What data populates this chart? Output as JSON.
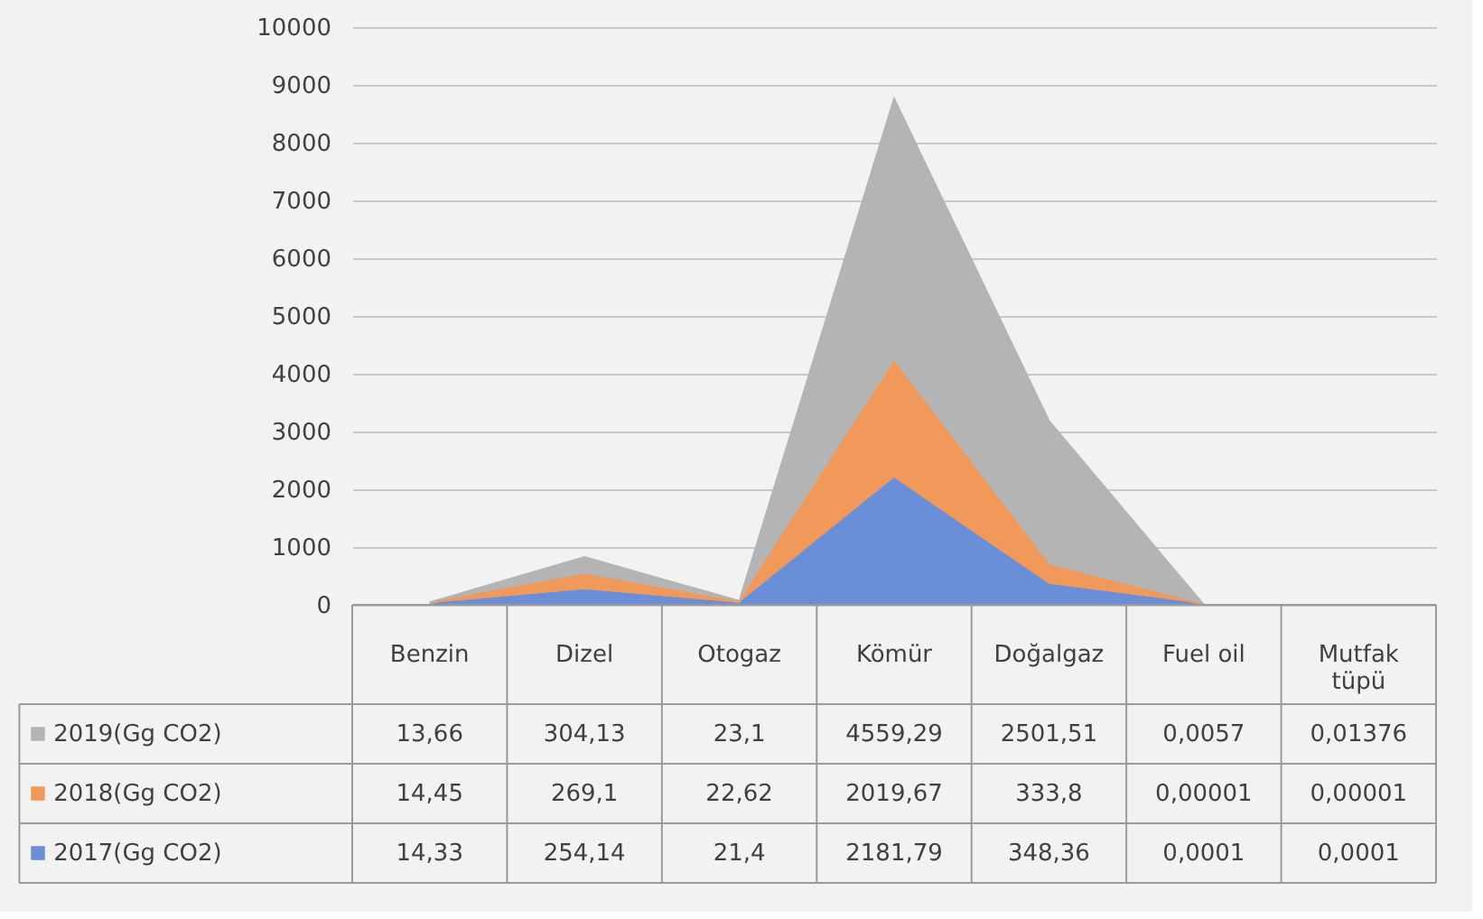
{
  "chart_data": {
    "type": "area",
    "stacked": true,
    "categories": [
      "Benzin",
      "Dizel",
      "Otogaz",
      "Kömür",
      "Doğalgaz",
      "Fuel oil",
      "Mutfak tüpü"
    ],
    "series": [
      {
        "name": "2017(Gg CO2)",
        "color": "#6a8fd8",
        "values": [
          14.33,
          254.14,
          21.4,
          2181.79,
          348.36,
          0.0001,
          0.0001
        ],
        "value_labels": [
          "14,33",
          "254,14",
          "21,4",
          "2181,79",
          "348,36",
          "0,0001",
          "0,0001"
        ]
      },
      {
        "name": "2018(Gg CO2)",
        "color": "#f0995a",
        "values": [
          14.45,
          269.1,
          22.62,
          2019.67,
          333.8,
          1e-05,
          1e-05
        ],
        "value_labels": [
          "14,45",
          "269,1",
          "22,62",
          "2019,67",
          "333,8",
          "0,00001",
          "0,00001"
        ]
      },
      {
        "name": "2019(Gg CO2)",
        "color": "#b4b4b4",
        "values": [
          13.66,
          304.13,
          23.1,
          4559.29,
          2501.51,
          0.0057,
          0.01376
        ],
        "value_labels": [
          "13,66",
          "304,13",
          "23,1",
          "4559,29",
          "2501,51",
          "0,0057",
          "0,01376"
        ]
      }
    ],
    "ylim": [
      0,
      10000
    ],
    "yticks": [
      0,
      1000,
      2000,
      3000,
      4000,
      5000,
      6000,
      7000,
      8000,
      9000,
      10000
    ],
    "grid": "y",
    "legend": "bottom"
  }
}
